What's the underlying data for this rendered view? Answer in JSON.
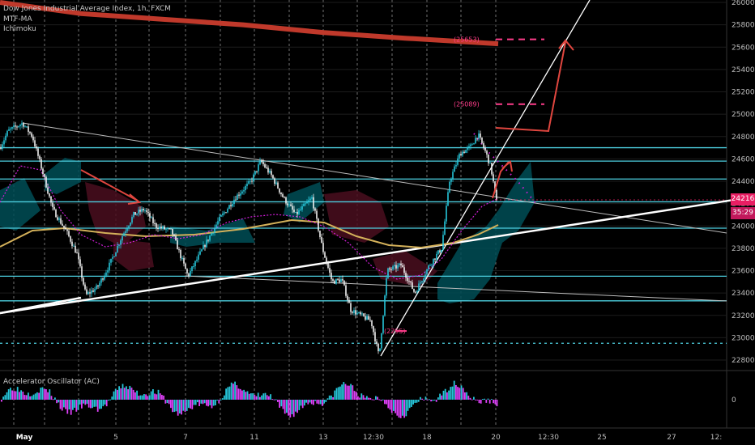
{
  "legend": {
    "title": "Dow Jones Industrial Average Index, 1h, FXCM",
    "indicator1": "MTF-MA",
    "indicator2": "Ichimoku"
  },
  "oscillator": {
    "title": "Accelerator Oscillator (AC)",
    "zero_label": "0"
  },
  "last_price": "24216",
  "countdown": "35:29",
  "colors": {
    "background": "#000000",
    "candle_up": "#26c6da",
    "candle_down": "#f0f0f0",
    "cloud_bull": "#004d56",
    "cloud_bear": "#4a0e1e",
    "ma_slow": "#d4b15a",
    "ma_fast": "#d21ed9",
    "horizontal_level": "#4dd0e1",
    "trendline": "#ffffff",
    "mtf_ma_band": "#c0392b",
    "arrow": "#e0463f",
    "target_label": "#ff3d8b",
    "price_tag": "#e91e63"
  },
  "chart_data": {
    "type": "candlestick",
    "ylim": [
      22650,
      26000
    ],
    "y_ticks": [
      22800,
      23000,
      23200,
      23400,
      23600,
      23800,
      24000,
      24200,
      24400,
      24600,
      24800,
      25000,
      25200,
      25400,
      25600,
      25800,
      26000
    ],
    "x_ticks": [
      "May",
      "5",
      "7",
      "11",
      "13",
      "12:30",
      "18",
      "20",
      "12:30",
      "25",
      "27",
      "12:"
    ],
    "price_path": [
      [
        0,
        24700
      ],
      [
        10,
        24850
      ],
      [
        28,
        24920
      ],
      [
        40,
        24800
      ],
      [
        52,
        24500
      ],
      [
        65,
        24150
      ],
      [
        82,
        23950
      ],
      [
        95,
        23750
      ],
      [
        106,
        23380
      ],
      [
        120,
        23450
      ],
      [
        135,
        23650
      ],
      [
        150,
        23900
      ],
      [
        165,
        24100
      ],
      [
        178,
        24150
      ],
      [
        192,
        24000
      ],
      [
        212,
        23950
      ],
      [
        232,
        23550
      ],
      [
        252,
        23820
      ],
      [
        270,
        24050
      ],
      [
        290,
        24250
      ],
      [
        310,
        24400
      ],
      [
        322,
        24580
      ],
      [
        335,
        24450
      ],
      [
        350,
        24250
      ],
      [
        365,
        24100
      ],
      [
        385,
        24250
      ],
      [
        398,
        23800
      ],
      [
        410,
        23500
      ],
      [
        422,
        23520
      ],
      [
        433,
        23250
      ],
      [
        445,
        23200
      ],
      [
        458,
        23150
      ],
      [
        468,
        22830
      ],
      [
        478,
        23600
      ],
      [
        495,
        23650
      ],
      [
        512,
        23400
      ],
      [
        530,
        23650
      ],
      [
        545,
        23800
      ],
      [
        555,
        24400
      ],
      [
        568,
        24650
      ],
      [
        580,
        24700
      ],
      [
        590,
        24820
      ],
      [
        600,
        24650
      ],
      [
        606,
        24520
      ],
      [
        613,
        24216
      ]
    ],
    "levels": [
      24700,
      24580,
      24420,
      24216,
      23980,
      23550,
      23330,
      22950
    ],
    "mtf_ma_band": [
      [
        0,
        26000
      ],
      [
        100,
        25900
      ],
      [
        200,
        25850
      ],
      [
        300,
        25800
      ],
      [
        400,
        25730
      ],
      [
        500,
        25680
      ],
      [
        615,
        25630
      ]
    ],
    "targets": [
      {
        "label": "(25653)",
        "value": 25670
      },
      {
        "label": "(25089)",
        "value": 25090
      }
    ],
    "low_label": {
      "label": "(2295)",
      "value": 23060
    }
  }
}
